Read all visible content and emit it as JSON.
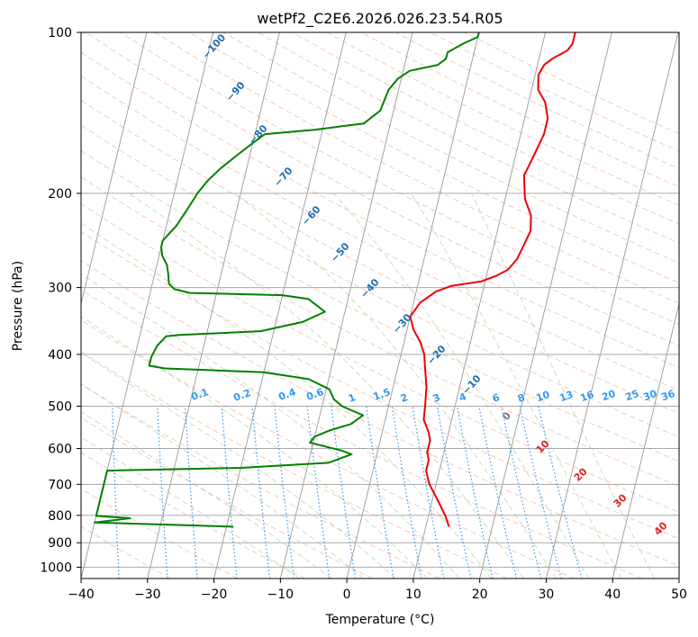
{
  "chart_data": {
    "type": "line",
    "subtype": "skew-t log-p diagram",
    "title": "wetPf2_C2E6.2026.026.23.54.R05",
    "xlabel": "Temperature (°C)",
    "ylabel": "Pressure (hPa)",
    "xlim": [
      -40,
      50
    ],
    "ylim": [
      1050,
      100
    ],
    "y_scale": "log",
    "grid": true,
    "x_ticks": [
      "−40",
      "−30",
      "−20",
      "−10",
      "0",
      "10",
      "20",
      "30",
      "40",
      "50"
    ],
    "y_ticks": [
      "100",
      "200",
      "300",
      "400",
      "500",
      "600",
      "700",
      "800",
      "900",
      "1000"
    ],
    "y_tick_values": [
      100,
      200,
      300,
      400,
      500,
      600,
      700,
      800,
      900,
      1000
    ],
    "series": [
      {
        "color": "#ee0000",
        "points": [
          [
            13.5,
            840
          ],
          [
            12.5,
            800
          ],
          [
            10.5,
            740
          ],
          [
            9.0,
            700
          ],
          [
            8.0,
            660
          ],
          [
            8.0,
            630
          ],
          [
            7.5,
            610
          ],
          [
            7.5,
            580
          ],
          [
            7.0,
            560
          ],
          [
            5.8,
            530
          ],
          [
            5.5,
            500
          ],
          [
            5.0,
            460
          ],
          [
            4.0,
            420
          ],
          [
            3.5,
            400
          ],
          [
            2.5,
            380
          ],
          [
            1.0,
            360
          ],
          [
            0,
            340
          ],
          [
            1.0,
            320
          ],
          [
            3.0,
            305
          ],
          [
            5.0,
            298
          ],
          [
            9.5,
            292
          ],
          [
            11.5,
            285
          ],
          [
            13.0,
            278
          ],
          [
            14.0,
            265
          ],
          [
            14.5,
            250
          ],
          [
            15.0,
            235
          ],
          [
            14.5,
            220
          ],
          [
            13.0,
            205
          ],
          [
            12.5,
            195
          ],
          [
            12.0,
            185
          ],
          [
            12.5,
            175
          ],
          [
            13.0,
            165
          ],
          [
            13.5,
            155
          ],
          [
            13.5,
            145
          ],
          [
            12.5,
            135
          ],
          [
            11.0,
            128
          ],
          [
            10.5,
            120
          ],
          [
            11.0,
            115
          ],
          [
            12.0,
            112
          ],
          [
            13.0,
            110
          ],
          [
            14.0,
            108
          ],
          [
            14.5,
            105
          ],
          [
            14.5,
            100
          ]
        ]
      },
      {
        "color": "#008000",
        "points": [
          [
            -19,
            840
          ],
          [
            -40,
            825
          ],
          [
            -34.8,
            810
          ],
          [
            -40,
            802
          ],
          [
            -40,
            660
          ],
          [
            -20,
            652
          ],
          [
            -7,
            638
          ],
          [
            -3.8,
            615
          ],
          [
            -5.5,
            605
          ],
          [
            -10.5,
            585
          ],
          [
            -10,
            570
          ],
          [
            -8,
            555
          ],
          [
            -5,
            540
          ],
          [
            -3.5,
            520
          ],
          [
            -7,
            500
          ],
          [
            -8.5,
            485
          ],
          [
            -9.5,
            465
          ],
          [
            -13,
            445
          ],
          [
            -20,
            432
          ],
          [
            -35,
            425
          ],
          [
            -37.5,
            420
          ],
          [
            -37.5,
            405
          ],
          [
            -37,
            385
          ],
          [
            -36,
            370
          ],
          [
            -34,
            368
          ],
          [
            -22,
            362
          ],
          [
            -16,
            348
          ],
          [
            -13,
            333
          ],
          [
            -16,
            315
          ],
          [
            -20,
            310
          ],
          [
            -34,
            307
          ],
          [
            -36.5,
            302
          ],
          [
            -37.5,
            295
          ],
          [
            -38,
            282
          ],
          [
            -38.5,
            272
          ],
          [
            -39.5,
            262
          ],
          [
            -40,
            252
          ],
          [
            -40,
            245
          ],
          [
            -38.5,
            230
          ],
          [
            -37.5,
            215
          ],
          [
            -36.5,
            200
          ],
          [
            -35.5,
            190
          ],
          [
            -34,
            180
          ],
          [
            -32,
            170
          ],
          [
            -30,
            161
          ],
          [
            -28.5,
            155
          ],
          [
            -21,
            152
          ],
          [
            -14,
            148
          ],
          [
            -12,
            140
          ],
          [
            -11.5,
            128
          ],
          [
            -10.5,
            122
          ],
          [
            -9,
            118
          ],
          [
            -5,
            115
          ],
          [
            -4,
            112
          ],
          [
            -4,
            109
          ],
          [
            -2,
            105
          ],
          [
            0,
            102
          ],
          [
            0,
            100
          ]
        ]
      }
    ],
    "dry_adiabat_labels": [
      "−100",
      "−90",
      "−80",
      "−70",
      "−60",
      "−50",
      "−40",
      "−30",
      "−20",
      "−10"
    ],
    "mixing_ratio_labels": [
      "0.1",
      "0.2",
      "0.4",
      "0.6",
      "1",
      "1.5",
      "2",
      "3",
      "4",
      "6",
      "8",
      "10",
      "13",
      "16",
      "20",
      "25",
      "30",
      "36"
    ],
    "moist_adiabat_labels": [
      "0",
      "10",
      "20",
      "30",
      "40"
    ],
    "colors": {
      "temperature": "#ee0000",
      "dewpoint": "#008000",
      "dry_adiabat_label": "#1f6fb0",
      "mixing_ratio": "#3399ee",
      "moist_adiabat_label_cold": "#777777",
      "moist_adiabat_label_warm": "#dd2222"
    }
  }
}
